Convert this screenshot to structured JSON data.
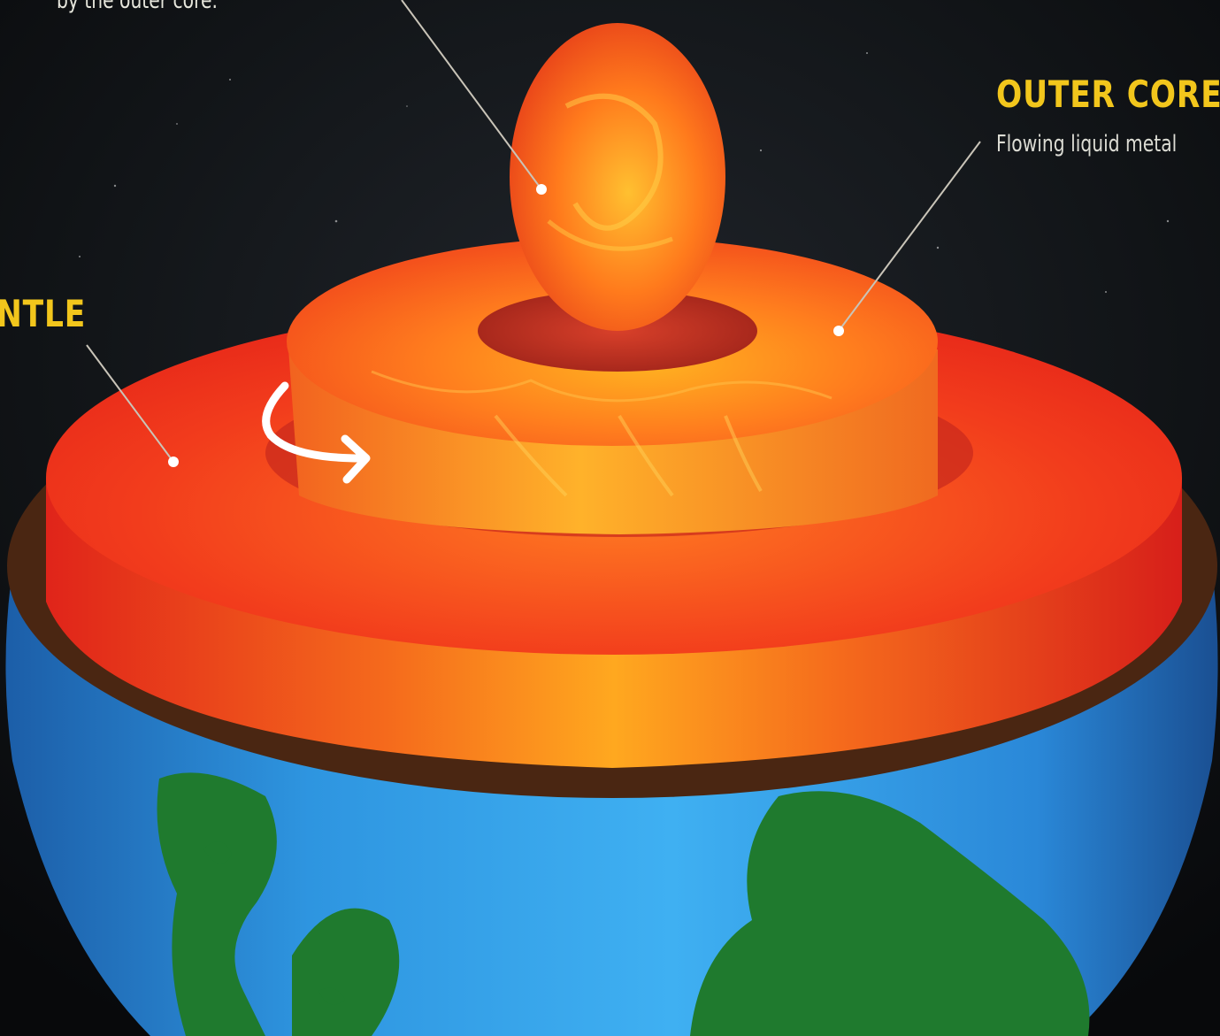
{
  "colors": {
    "background": "#0b0d0f",
    "label_title": "#f2c61c",
    "label_text": "#dcdcd4",
    "ocean": "#2f9ce6",
    "land": "#1f7a2e",
    "crust_rim": "#4a2612",
    "mantle": "#ef3f1e",
    "outer_core": "#ff6a1a",
    "inner_core": "#ff5a1a",
    "leader_line": "#c9c4b8",
    "arrow": "#ffffff"
  },
  "labels": {
    "inner_core_desc": "by the outer core.",
    "outer_core_title": "OUTER CORE",
    "outer_core_desc": "Flowing liquid metal",
    "mantle_title": "NTLE"
  },
  "icons": {
    "rotation_arrow": "curved-arrow-icon"
  }
}
